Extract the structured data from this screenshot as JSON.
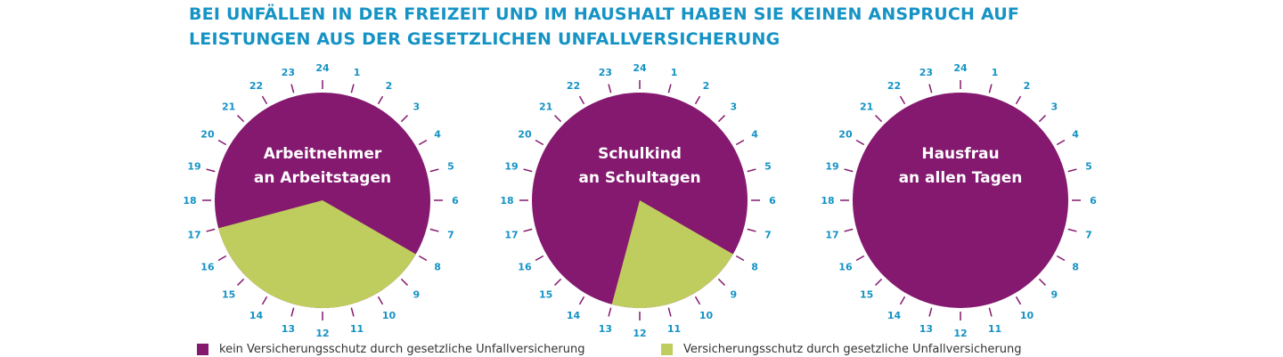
{
  "title": {
    "line1": "BEI UNFÄLLEN IN DER FREIZEIT UND IM HAUSHALT HABEN SIE KEINEN ANSPRUCH AUF",
    "line2": "LEISTUNGEN AUS DER GESETZLICHEN UNFALLVERSICHERUNG"
  },
  "colors": {
    "title": "#1593c5",
    "no_coverage": "#84196f",
    "coverage": "#bfcc5e",
    "tick_label": "#1593c5"
  },
  "legend": {
    "no_coverage": "kein Versicherungsschutz durch gesetzliche Unfallversicherung",
    "coverage": "Versicherungsschutz durch gesetzliche Unfallversicherung"
  },
  "chart_data": [
    {
      "type": "pie",
      "label_line1": "Arbeitnehmer",
      "label_line2": "an Arbeitstagen",
      "hour_labels": [
        "24",
        "1",
        "2",
        "3",
        "4",
        "5",
        "6",
        "7",
        "8",
        "9",
        "10",
        "11",
        "12",
        "13",
        "14",
        "15",
        "16",
        "17",
        "18",
        "19",
        "20",
        "21",
        "22",
        "23"
      ],
      "covered_hours": [
        8,
        17
      ],
      "not_covered_hours": [
        [
          17,
          24
        ],
        [
          0,
          8
        ]
      ]
    },
    {
      "type": "pie",
      "label_line1": "Schulkind",
      "label_line2": "an Schultagen",
      "hour_labels": [
        "24",
        "1",
        "2",
        "3",
        "4",
        "5",
        "6",
        "7",
        "8",
        "9",
        "10",
        "11",
        "12",
        "13",
        "14",
        "15",
        "16",
        "17",
        "18",
        "19",
        "20",
        "21",
        "22",
        "23"
      ],
      "covered_hours": [
        8,
        13
      ],
      "not_covered_hours": [
        [
          13,
          24
        ],
        [
          0,
          8
        ]
      ]
    },
    {
      "type": "pie",
      "label_line1": "Hausfrau",
      "label_line2": "an allen Tagen",
      "hour_labels": [
        "24",
        "1",
        "2",
        "3",
        "4",
        "5",
        "6",
        "7",
        "8",
        "9",
        "10",
        "11",
        "12",
        "13",
        "14",
        "15",
        "16",
        "17",
        "18",
        "19",
        "20",
        "21",
        "22",
        "23"
      ],
      "covered_hours": null,
      "not_covered_hours": [
        [
          0,
          24
        ]
      ]
    }
  ]
}
